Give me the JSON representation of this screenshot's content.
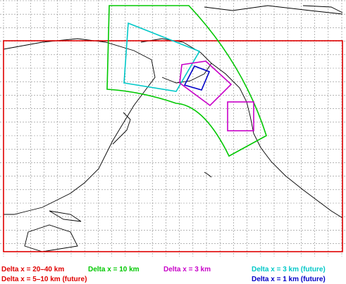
{
  "legend": [
    {
      "label": "Delta x = 20–40 km",
      "color": "#e00000"
    },
    {
      "label": "Delta x = 10 km",
      "color": "#00c800"
    },
    {
      "label": "Delta x = 3 km",
      "color": "#c800c8"
    },
    {
      "label": "Delta x = 3 km (future)",
      "color": "#00c8c8"
    },
    {
      "label": "Delta x = 5–10 km (future)",
      "color": "#e00000"
    },
    {
      "label": "Delta x = 1 km (future)",
      "color": "#0000c8"
    }
  ]
}
